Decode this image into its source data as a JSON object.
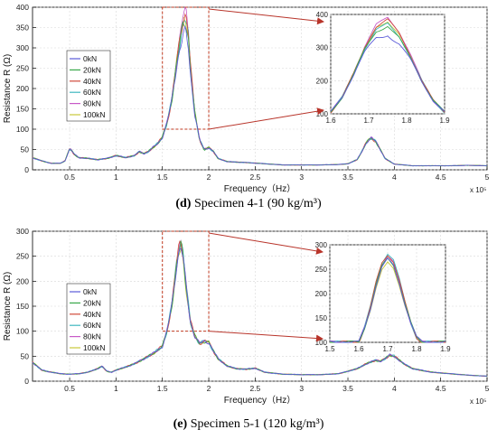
{
  "colors": [
    "#5a5ad8",
    "#39a84a",
    "#d14a3a",
    "#3fb8c0",
    "#c85ac8",
    "#c8c83a"
  ],
  "arrow_color": "#b8342a",
  "box_color": "#c03a20",
  "chart_data": [
    {
      "type": "line",
      "caption_letter": "(d)",
      "caption_text": " Specimen 4-1 (90 kg/m³)",
      "xlabel": "Frequency（Hz）",
      "ylabel": "Resistance R (Ω)",
      "x_multiplier": "x 10⁵",
      "xlim": [
        0.1,
        5.0
      ],
      "ylim": [
        0,
        400
      ],
      "xticks": [
        "0.5",
        "1",
        "1.5",
        "2",
        "2.5",
        "3",
        "3.5",
        "4",
        "4.5",
        "5"
      ],
      "yticks": [
        "0",
        "50",
        "100",
        "150",
        "200",
        "250",
        "300",
        "350",
        "400"
      ],
      "legend": [
        "0kN",
        "20kN",
        "40kN",
        "60kN",
        "80kN",
        "100kN"
      ],
      "box": {
        "xmin": 1.5,
        "xmax": 2.0,
        "ymin": 100,
        "ymax": 400
      },
      "inset": {
        "xlim": [
          1.6,
          1.9
        ],
        "ylim": [
          100,
          400
        ],
        "xticks": [
          "1.6",
          "1.7",
          "1.8",
          "1.9"
        ],
        "yticks": [
          "100",
          "200",
          "300",
          "400"
        ],
        "peak_x": 1.75,
        "peaks": [
          338,
          365,
          385,
          372,
          392,
          380
        ]
      },
      "x_base": [
        0.1,
        0.2,
        0.3,
        0.4,
        0.45,
        0.48,
        0.5,
        0.52,
        0.55,
        0.6,
        0.7,
        0.8,
        0.9,
        1.0,
        1.1,
        1.2,
        1.25,
        1.3,
        1.35,
        1.4,
        1.45,
        1.5,
        1.55,
        1.6,
        1.65,
        1.7,
        1.72,
        1.75,
        1.78,
        1.8,
        1.85,
        1.9,
        1.95,
        2.0,
        2.05,
        2.1,
        2.2,
        2.4,
        2.6,
        2.8,
        3.0,
        3.2,
        3.4,
        3.5,
        3.6,
        3.65,
        3.7,
        3.75,
        3.8,
        3.85,
        3.9,
        4.0,
        4.2,
        4.4,
        4.6,
        4.8,
        5.0
      ],
      "y_base": [
        30,
        22,
        16,
        16,
        22,
        40,
        52,
        48,
        38,
        30,
        28,
        25,
        28,
        35,
        30,
        35,
        45,
        40,
        45,
        55,
        65,
        80,
        115,
        170,
        260,
        335,
        365,
        380,
        335,
        260,
        140,
        75,
        50,
        55,
        45,
        28,
        20,
        18,
        15,
        12,
        12,
        12,
        13,
        15,
        25,
        45,
        68,
        78,
        70,
        50,
        28,
        14,
        10,
        10,
        10,
        11,
        10
      ],
      "peaks": [
        338,
        365,
        385,
        372,
        392,
        380
      ],
      "peak_x": 1.75,
      "inset_x": [
        1.6,
        1.63,
        1.66,
        1.69,
        1.72,
        1.75,
        1.78,
        1.81,
        1.84,
        1.87,
        1.9
      ],
      "inset_y": [
        105,
        150,
        220,
        300,
        360,
        380,
        340,
        275,
        200,
        140,
        105
      ]
    },
    {
      "type": "line",
      "caption_letter": "(e)",
      "caption_text": " Specimen 5-1 (120 kg/m³)",
      "xlabel": "Frequency（Hz）",
      "ylabel": "Resistance R (Ω)",
      "x_multiplier": "x 10⁵",
      "xlim": [
        0.1,
        5.0
      ],
      "ylim": [
        0,
        300
      ],
      "xticks": [
        "0.5",
        "1",
        "1.5",
        "2",
        "2.5",
        "3",
        "3.5",
        "4",
        "4.5",
        "5"
      ],
      "yticks": [
        "0",
        "50",
        "100",
        "150",
        "200",
        "250",
        "300"
      ],
      "legend": [
        "0kN",
        "20kN",
        "40kN",
        "60kN",
        "80kN",
        "100kN"
      ],
      "box": {
        "xmin": 1.5,
        "xmax": 2.0,
        "ymin": 100,
        "ymax": 300
      },
      "inset": {
        "xlim": [
          1.5,
          1.9
        ],
        "ylim": [
          100,
          300
        ],
        "xticks": [
          "1.5",
          "1.6",
          "1.7",
          "1.8",
          "1.9"
        ],
        "yticks": [
          "100",
          "150",
          "200",
          "250",
          "300"
        ],
        "peak_x": 1.7,
        "peaks": [
          270,
          272,
          280,
          283,
          276,
          262
        ]
      },
      "x_base": [
        0.1,
        0.2,
        0.3,
        0.4,
        0.5,
        0.6,
        0.7,
        0.8,
        0.85,
        0.9,
        0.95,
        1.0,
        1.1,
        1.2,
        1.3,
        1.4,
        1.5,
        1.55,
        1.6,
        1.65,
        1.68,
        1.7,
        1.72,
        1.75,
        1.8,
        1.85,
        1.9,
        1.95,
        2.0,
        2.05,
        2.1,
        2.2,
        2.3,
        2.4,
        2.5,
        2.6,
        2.8,
        3.0,
        3.2,
        3.4,
        3.6,
        3.7,
        3.8,
        3.85,
        3.9,
        3.95,
        4.0,
        4.1,
        4.2,
        4.4,
        4.6,
        4.8,
        5.0
      ],
      "y_base": [
        38,
        22,
        18,
        15,
        14,
        15,
        18,
        25,
        30,
        20,
        18,
        22,
        28,
        35,
        45,
        55,
        70,
        100,
        150,
        230,
        265,
        275,
        255,
        200,
        120,
        90,
        75,
        80,
        78,
        60,
        45,
        30,
        25,
        24,
        26,
        18,
        14,
        13,
        13,
        15,
        25,
        35,
        42,
        40,
        45,
        52,
        50,
        35,
        25,
        18,
        15,
        12,
        10
      ],
      "peaks": [
        270,
        272,
        280,
        283,
        276,
        262
      ],
      "peak_x": 1.7,
      "inset_x": [
        1.6,
        1.62,
        1.64,
        1.66,
        1.68,
        1.7,
        1.72,
        1.74,
        1.76,
        1.78,
        1.8,
        1.82
      ],
      "inset_y": [
        100,
        130,
        170,
        220,
        258,
        275,
        262,
        225,
        180,
        140,
        110,
        100
      ]
    }
  ]
}
